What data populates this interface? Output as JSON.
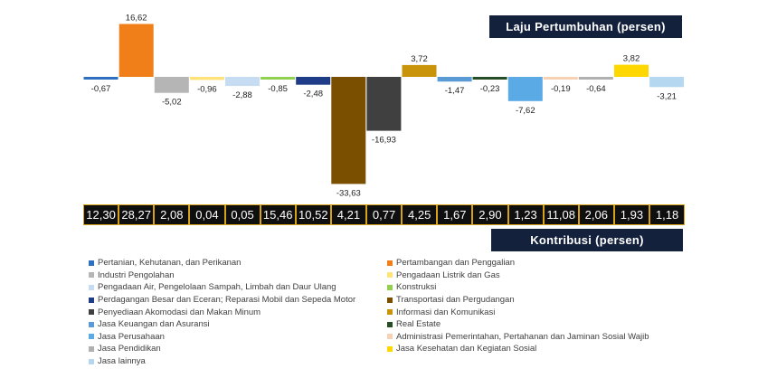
{
  "chart_data": {
    "type": "bar",
    "series_title": "Laju Pertumbuhan (persen)",
    "contribution_title": "Kontribusi (persen)",
    "categories": [
      "Pertanian, Kehutanan, dan Perikanan",
      "Pertambangan dan Penggalian",
      "Industri Pengolahan",
      "Pengadaan Listrik dan Gas",
      "Pengadaan Air, Pengelolaan Sampah, Limbah dan Daur Ulang",
      "Konstruksi",
      "Perdagangan Besar dan Eceran; Reparasi Mobil dan Sepeda Motor",
      "Transportasi dan Pergudangan",
      "Penyediaan Akomodasi dan Makan Minum",
      "Informasi dan Komunikasi",
      "Jasa Keuangan dan Asuransi",
      "Real Estate",
      "Jasa Perusahaan",
      "Administrasi Pemerintahan, Pertahanan dan Jaminan Sosial Wajib",
      "Jasa Pendidikan",
      "Jasa Kesehatan dan Kegiatan Sosial",
      "Jasa lainnya"
    ],
    "growth_labels": [
      "-0,67",
      "16,62",
      "-5,02",
      "-0,96",
      "-2,88",
      "-0,85",
      "-2,48",
      "-33,63",
      "-16,93",
      "3,72",
      "-1,47",
      "-0,23",
      "-7,62",
      "-0,19",
      "-0,64",
      "3,82",
      "-3,21"
    ],
    "growth_values": [
      -0.67,
      16.62,
      -5.02,
      -0.96,
      -2.88,
      -0.85,
      -2.48,
      -33.63,
      -16.93,
      3.72,
      -1.47,
      -0.23,
      -7.62,
      -0.19,
      -0.64,
      3.82,
      -3.21
    ],
    "contribution_labels": [
      "12,30",
      "28,27",
      "2,08",
      "0,04",
      "0,05",
      "15,46",
      "10,52",
      "4,21",
      "0,77",
      "4,25",
      "1,67",
      "2,90",
      "1,23",
      "11,08",
      "2,06",
      "1,93",
      "1,18"
    ],
    "colors": [
      "#2e6fbf",
      "#f07f1a",
      "#b5b5b5",
      "#ffe27a",
      "#c5dcf2",
      "#92d050",
      "#1f3c88",
      "#7b4f00",
      "#404040",
      "#c9930a",
      "#5b9bd5",
      "#264d26",
      "#5aaae6",
      "#f6d1b4",
      "#b0b0b0",
      "#ffd700",
      "#b6d7f0"
    ]
  }
}
